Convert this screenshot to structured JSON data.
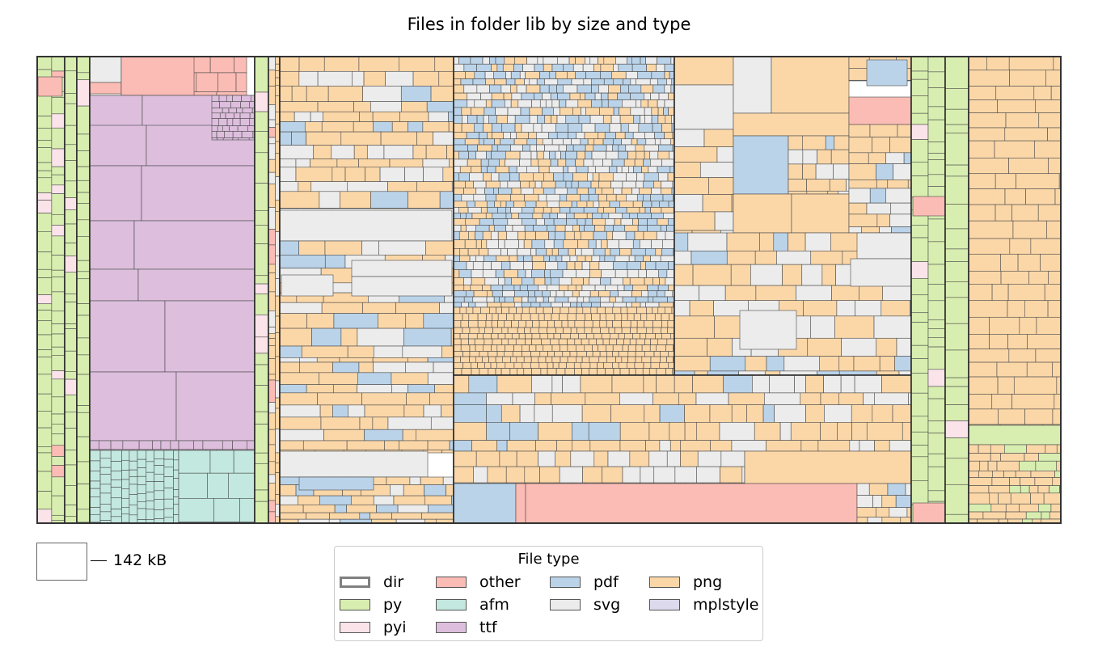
{
  "chart_data": {
    "type": "treemap",
    "title": "Files in folder lib by size and type",
    "scale": {
      "label": "142 kB",
      "value_kB": 142
    },
    "legend": {
      "title": "File type",
      "placement": "bottom-center",
      "entries": [
        {
          "name": "dir",
          "color": "#ffffff",
          "edge": "#808080"
        },
        {
          "name": "py",
          "color": "#d8eeb0"
        },
        {
          "name": "pyi",
          "color": "#fbe3ea"
        },
        {
          "name": "other",
          "color": "#fbbcb5"
        },
        {
          "name": "afm",
          "color": "#c3e8df"
        },
        {
          "name": "ttf",
          "color": "#ddbedd"
        },
        {
          "name": "pdf",
          "color": "#bad3e9"
        },
        {
          "name": "svg",
          "color": "#ececec"
        },
        {
          "name": "png",
          "color": "#fbd7a8"
        },
        {
          "name": "mplstyle",
          "color": "#dedaee"
        }
      ]
    },
    "approx_area_share": {
      "py": 0.12,
      "pyi": 0.01,
      "other": 0.05,
      "afm": 0.03,
      "ttf": 0.12,
      "pdf": 0.08,
      "svg": 0.13,
      "png": 0.45,
      "mplstyle": 0.01
    }
  }
}
